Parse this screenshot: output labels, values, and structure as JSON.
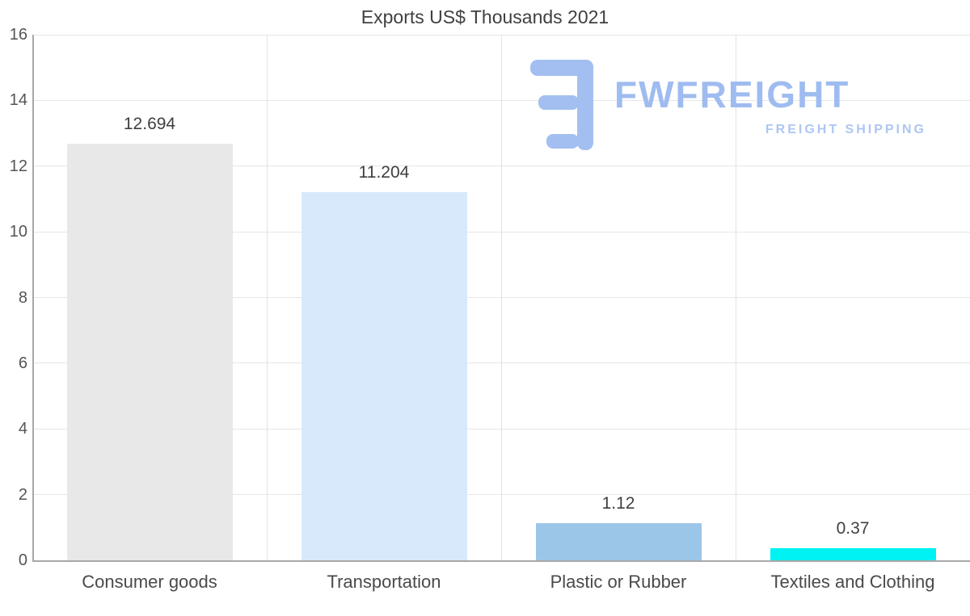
{
  "chart_data": {
    "type": "bar",
    "title": "Exports US$ Thousands 2021",
    "categories": [
      "Consumer goods",
      "Transportation",
      "Plastic or Rubber",
      "Textiles and Clothing"
    ],
    "values": [
      12.694,
      11.204,
      1.12,
      0.37
    ],
    "value_labels": [
      "12.694",
      "11.204",
      "1.12",
      "0.37"
    ],
    "bar_colors": [
      "#e8e8e8",
      "#d8e9fb",
      "#9cc6e8",
      "#00f2f2"
    ],
    "xlabel": "",
    "ylabel": "",
    "ylim": [
      0,
      16
    ],
    "yticks": [
      0,
      2,
      4,
      6,
      8,
      10,
      12,
      14,
      16
    ],
    "grid": true,
    "legend": "none"
  },
  "logo": {
    "name": "FWFREIGHT",
    "subtitle": "FREIGHT SHIPPING",
    "color": "#9fbcf0"
  }
}
